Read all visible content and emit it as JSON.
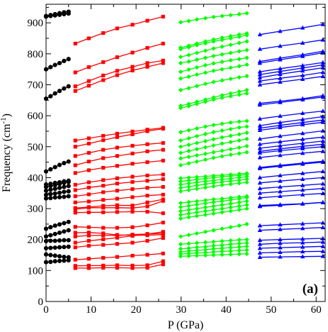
{
  "chart_data": {
    "type": "line",
    "xlabel": "P (GPa)",
    "ylabel": "Frequency (cm",
    "ylabel_sup": "-1",
    "ylabel_close": ")",
    "panel_label": "(a)",
    "xlim": [
      0,
      62
    ],
    "ylim": [
      0,
      960
    ],
    "xticks": [
      0,
      10,
      20,
      30,
      40,
      50,
      60
    ],
    "yticks": [
      0,
      100,
      200,
      300,
      400,
      500,
      600,
      700,
      800,
      900
    ],
    "grid": false,
    "groups": [
      {
        "name": "group-1",
        "color": "#000000",
        "marker": "circle",
        "x": [
          0,
          1,
          2,
          3,
          4,
          5
        ],
        "series": [
          [
            127,
            128,
            130,
            131,
            132,
            133
          ],
          [
            152,
            150,
            148,
            146,
            144,
            143
          ],
          [
            172,
            173,
            174,
            175,
            176,
            177
          ],
          [
            195,
            196,
            196,
            197,
            198,
            198
          ],
          [
            210,
            214,
            218,
            222,
            226,
            230
          ],
          [
            235,
            240,
            245,
            249,
            253,
            257
          ],
          [
            333,
            334,
            336,
            337,
            338,
            340
          ],
          [
            344,
            347,
            349,
            351,
            354,
            356
          ],
          [
            358,
            361,
            364,
            367,
            370,
            373
          ],
          [
            370,
            373,
            376,
            380,
            383,
            386
          ],
          [
            378,
            380,
            383,
            385,
            388,
            390
          ],
          [
            420,
            427,
            434,
            441,
            447,
            452
          ],
          [
            655,
            663,
            672,
            680,
            688,
            695
          ],
          [
            750,
            757,
            764,
            770,
            777,
            783
          ],
          [
            920,
            922,
            924,
            926,
            928,
            930
          ],
          [
            922,
            925,
            928,
            931,
            934,
            936
          ]
        ]
      },
      {
        "name": "group-2",
        "color": "#ff0000",
        "marker": "square",
        "x": [
          6.5,
          9.5,
          12.7,
          15.8,
          19.2,
          22.5,
          26
        ],
        "series": [
          [
            108,
            108,
            109,
            109,
            108,
            109,
            120
          ],
          [
            115,
            116,
            116,
            117,
            116,
            117,
            130
          ],
          [
            135,
            138,
            141,
            144,
            148,
            151,
            155
          ],
          [
            175,
            180,
            183,
            186,
            190,
            196,
            205
          ],
          [
            190,
            196,
            201,
            206,
            212,
            218,
            225
          ],
          [
            210,
            213,
            214,
            213,
            216,
            218,
            220
          ],
          [
            222,
            223,
            220,
            215,
            214,
            214,
            216
          ],
          [
            241,
            240,
            238,
            238,
            240,
            246,
            255
          ],
          [
            287,
            288,
            288,
            289,
            290,
            290,
            285
          ],
          [
            298,
            303,
            303,
            303,
            302,
            307,
            325
          ],
          [
            302,
            305,
            309,
            311,
            310,
            320,
            330
          ],
          [
            320,
            323,
            328,
            332,
            337,
            342,
            345
          ],
          [
            340,
            346,
            353,
            358,
            363,
            367,
            370
          ],
          [
            360,
            368,
            374,
            381,
            386,
            390,
            395
          ],
          [
            377,
            385,
            392,
            398,
            403,
            407,
            410
          ],
          [
            415,
            424,
            432,
            438,
            445,
            450,
            455
          ],
          [
            440,
            452,
            463,
            470,
            478,
            485,
            490
          ],
          [
            470,
            480,
            490,
            497,
            503,
            508,
            512
          ],
          [
            500,
            510,
            521,
            531,
            540,
            550,
            558
          ],
          [
            520,
            527,
            535,
            542,
            549,
            555,
            561
          ],
          [
            680,
            697,
            715,
            731,
            746,
            758,
            770
          ],
          [
            695,
            712,
            730,
            745,
            758,
            770,
            778
          ],
          [
            740,
            757,
            773,
            789,
            804,
            819,
            833
          ],
          [
            833,
            850,
            867,
            882,
            894,
            907,
            920
          ]
        ]
      },
      {
        "name": "group-3",
        "color": "#00ff00",
        "marker": "diamond",
        "x": [
          29.9,
          31.7,
          33.5,
          35.4,
          37.2,
          39.1,
          41,
          42.9,
          44.6
        ],
        "series": [
          [
            146,
            147,
            148,
            149,
            150,
            151,
            152,
            153,
            154
          ],
          [
            153,
            155,
            157,
            158,
            160,
            162,
            163,
            165,
            166
          ],
          [
            160,
            163,
            165,
            167,
            170,
            172,
            174,
            176,
            178
          ],
          [
            170,
            172,
            175,
            177,
            180,
            182,
            185,
            187,
            189
          ],
          [
            185,
            187,
            189,
            191,
            193,
            195,
            197,
            199,
            200
          ],
          [
            210,
            215,
            220,
            225,
            230,
            235,
            240,
            245,
            250
          ],
          [
            268,
            272,
            276,
            280,
            284,
            288,
            292,
            296,
            300
          ],
          [
            280,
            284,
            288,
            292,
            296,
            300,
            304,
            308,
            312
          ],
          [
            292,
            296,
            300,
            304,
            308,
            312,
            316,
            320,
            324
          ],
          [
            305,
            309,
            313,
            317,
            321,
            324,
            328,
            332,
            336
          ],
          [
            318,
            321,
            324,
            327,
            330,
            332,
            335,
            338,
            340
          ],
          [
            356,
            360,
            364,
            368,
            372,
            376,
            379,
            382,
            385
          ],
          [
            367,
            371,
            375,
            379,
            383,
            386,
            389,
            392,
            395
          ],
          [
            378,
            381,
            385,
            388,
            391,
            394,
            397,
            400,
            403
          ],
          [
            388,
            391,
            394,
            397,
            400,
            403,
            405,
            407,
            410
          ],
          [
            398,
            400,
            402,
            404,
            406,
            408,
            410,
            412,
            414
          ],
          [
            440,
            446,
            452,
            458,
            464,
            469,
            474,
            478,
            482
          ],
          [
            462,
            467,
            472,
            477,
            482,
            487,
            492,
            497,
            502
          ],
          [
            480,
            486,
            492,
            498,
            504,
            510,
            515,
            520,
            525
          ],
          [
            500,
            506,
            512,
            518,
            524,
            530,
            535,
            540,
            545
          ],
          [
            520,
            527,
            534,
            541,
            547,
            552,
            557,
            562,
            565
          ],
          [
            547,
            553,
            559,
            565,
            570,
            574,
            578,
            581,
            583
          ],
          [
            625,
            631,
            638,
            645,
            652,
            658,
            663,
            668,
            672
          ],
          [
            632,
            638,
            645,
            652,
            659,
            666,
            672,
            678,
            683
          ],
          [
            683,
            689,
            696,
            703,
            709,
            714,
            719,
            724,
            728
          ],
          [
            720,
            726,
            733,
            739,
            745,
            750,
            755,
            760,
            765
          ],
          [
            742,
            749,
            756,
            763,
            769,
            774,
            779,
            783,
            787
          ],
          [
            770,
            775,
            781,
            787,
            793,
            798,
            803,
            808,
            812
          ],
          [
            790,
            796,
            803,
            810,
            817,
            823,
            829,
            835,
            840
          ],
          [
            815,
            821,
            828,
            834,
            840,
            845,
            850,
            855,
            860
          ],
          [
            820,
            826,
            833,
            840,
            846,
            852,
            857,
            862,
            866
          ],
          [
            902,
            906,
            911,
            915,
            919,
            922,
            925,
            928,
            931
          ]
        ]
      },
      {
        "name": "group-4",
        "color": "#0000ff",
        "marker": "triangle",
        "x": [
          47.5,
          52,
          57,
          61.5
        ],
        "series": [
          [
            143,
            144,
            145,
            146
          ],
          [
            157,
            159,
            161,
            162
          ],
          [
            172,
            174,
            176,
            178
          ],
          [
            185,
            188,
            190,
            192
          ],
          [
            198,
            200,
            202,
            204
          ],
          [
            230,
            233,
            236,
            239
          ],
          [
            245,
            248,
            251,
            254
          ],
          [
            307,
            311,
            315,
            320
          ],
          [
            310,
            313,
            316,
            320
          ],
          [
            335,
            340,
            345,
            349
          ],
          [
            350,
            355,
            360,
            365
          ],
          [
            365,
            370,
            375,
            380
          ],
          [
            383,
            389,
            395,
            400
          ],
          [
            400,
            407,
            414,
            420
          ],
          [
            430,
            437,
            444,
            450
          ],
          [
            433,
            440,
            447,
            453
          ],
          [
            465,
            472,
            479,
            485
          ],
          [
            480,
            487,
            494,
            500
          ],
          [
            485,
            493,
            501,
            508
          ],
          [
            495,
            503,
            511,
            518
          ],
          [
            508,
            516,
            524,
            531
          ],
          [
            525,
            534,
            543,
            551
          ],
          [
            553,
            562,
            571,
            579
          ],
          [
            560,
            569,
            578,
            586
          ],
          [
            568,
            578,
            588,
            597
          ],
          [
            590,
            599,
            608,
            615
          ],
          [
            635,
            643,
            652,
            660
          ],
          [
            640,
            647,
            655,
            665
          ],
          [
            700,
            709,
            718,
            727
          ],
          [
            712,
            721,
            730,
            740
          ],
          [
            723,
            734,
            745,
            755
          ],
          [
            733,
            743,
            754,
            764
          ],
          [
            742,
            752,
            762,
            772
          ],
          [
            770,
            781,
            792,
            803
          ],
          [
            775,
            786,
            797,
            808
          ],
          [
            815,
            825,
            835,
            845
          ],
          [
            862,
            873,
            884,
            895
          ]
        ]
      }
    ]
  }
}
